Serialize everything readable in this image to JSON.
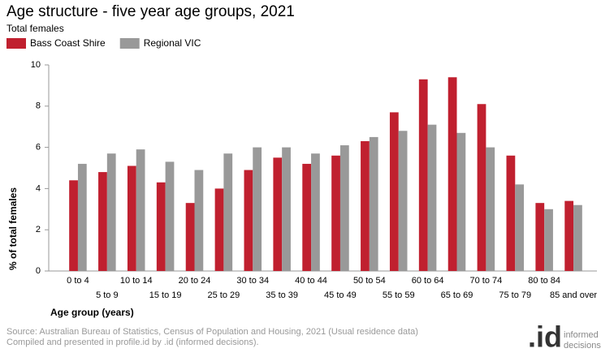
{
  "chart_data": {
    "type": "bar",
    "title": "Age structure - five year age groups, 2021",
    "subtitle": "Total females",
    "x_label": "Age group (years)",
    "y_label": "% of total females",
    "categories": [
      "0 to 4",
      "5 to 9",
      "10 to 14",
      "15 to 19",
      "20 to 24",
      "25 to 29",
      "30 to 34",
      "35 to 39",
      "40 to 44",
      "45 to 49",
      "50 to 54",
      "55 to 59",
      "60 to 64",
      "65 to 69",
      "70 to 74",
      "75 to 79",
      "80 to 84",
      "85 and over"
    ],
    "series": [
      {
        "name": "Bass Coast Shire",
        "color": "#c0202f",
        "values": [
          4.4,
          4.8,
          5.1,
          4.3,
          3.3,
          4.0,
          4.9,
          5.5,
          5.2,
          5.6,
          6.3,
          7.7,
          9.3,
          9.4,
          8.1,
          5.6,
          3.3,
          3.4
        ]
      },
      {
        "name": "Regional VIC",
        "color": "#999999",
        "values": [
          5.2,
          5.7,
          5.9,
          5.3,
          4.9,
          5.7,
          6.0,
          6.0,
          5.7,
          6.1,
          6.5,
          6.8,
          7.1,
          6.7,
          6.0,
          4.2,
          3.0,
          3.2
        ]
      }
    ],
    "ylim": [
      0,
      10
    ],
    "yticks": [
      0,
      2,
      4,
      6,
      8,
      10
    ],
    "grid": false,
    "legend": "top-left"
  },
  "footer": {
    "source": "Source: Australian Bureau of Statistics, Census of Population and Housing, 2021 (Usual residence data)",
    "credit": "Compiled and presented in profile.id by .id (informed decisions).",
    "logo": ".id",
    "logo_lines": [
      "informed",
      "decisions"
    ]
  }
}
